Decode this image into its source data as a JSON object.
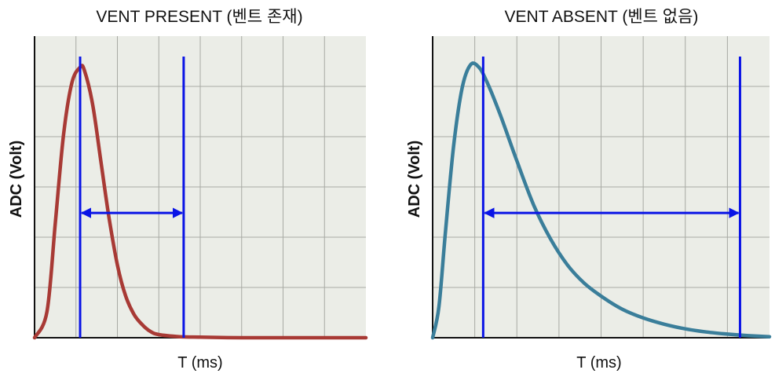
{
  "chart_data": [
    {
      "type": "line",
      "title": "VENT PRESENT (벤트 존재)",
      "xlabel": "T (ms)",
      "ylabel": "ADC (Volt)",
      "grid": true,
      "line_color": "#a83a35",
      "marker_color": "#0a14e6",
      "series": [
        {
          "x": [
            0,
            0.3,
            0.5,
            0.7,
            0.9,
            1.1,
            1.2,
            1.4,
            1.6,
            1.8,
            2.0,
            2.2,
            2.4,
            2.6,
            2.8,
            3.0,
            3.5,
            4.0,
            5.0,
            6.0,
            7.0,
            8.0
          ],
          "values": [
            0,
            0.5,
            2.2,
            3.9,
            4.9,
            5.2,
            5.15,
            4.5,
            3.4,
            2.3,
            1.4,
            0.8,
            0.45,
            0.25,
            0.12,
            0.06,
            0.02,
            0.01,
            0,
            0,
            0,
            0
          ]
        }
      ],
      "annotations": [
        {
          "type": "vline",
          "x": 1.1
        },
        {
          "type": "vline",
          "x": 3.6
        },
        {
          "type": "double-arrow",
          "x_start": 1.1,
          "x_end": 3.6,
          "y": 2.4
        }
      ]
    },
    {
      "type": "line",
      "title": "VENT ABSENT (벤트 없음)",
      "xlabel": "T (ms)",
      "ylabel": "ADC (Volt)",
      "grid": true,
      "line_color": "#3a7e9a",
      "marker_color": "#0a14e6",
      "series": [
        {
          "x": [
            0,
            0.15,
            0.3,
            0.5,
            0.7,
            0.9,
            1.1,
            1.3,
            1.6,
            2.0,
            2.4,
            2.8,
            3.2,
            3.6,
            4.0,
            4.5,
            5.0,
            5.5,
            6.0,
            6.5,
            7.0,
            7.5,
            8.0
          ],
          "values": [
            0,
            0.6,
            2.0,
            3.7,
            4.8,
            5.25,
            5.2,
            4.9,
            4.3,
            3.4,
            2.55,
            1.9,
            1.4,
            1.05,
            0.8,
            0.55,
            0.38,
            0.26,
            0.17,
            0.11,
            0.07,
            0.04,
            0.02
          ]
        }
      ],
      "annotations": [
        {
          "type": "vline",
          "x": 1.2
        },
        {
          "type": "vline",
          "x": 7.3
        },
        {
          "type": "double-arrow",
          "x_start": 1.2,
          "x_end": 7.3,
          "y": 2.4
        }
      ]
    }
  ]
}
